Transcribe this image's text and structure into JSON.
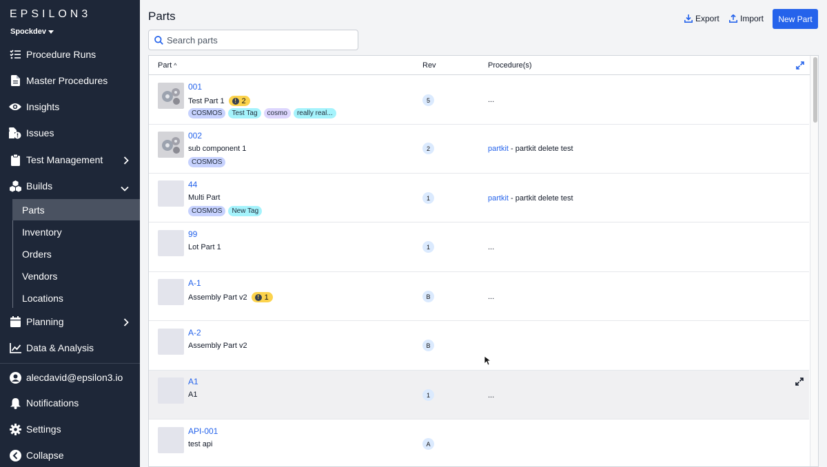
{
  "app": {
    "logo": "EPSILON3",
    "workspace": "Spockdev"
  },
  "sidebar": {
    "items": [
      {
        "label": "Procedure Runs",
        "icon": "list-check-icon"
      },
      {
        "label": "Master Procedures",
        "icon": "document-icon"
      },
      {
        "label": "Insights",
        "icon": "eye-icon"
      },
      {
        "label": "Issues",
        "icon": "issue-file-icon"
      },
      {
        "label": "Test Management",
        "icon": "clipboard-icon"
      },
      {
        "label": "Builds",
        "icon": "cubes-icon"
      },
      {
        "label": "Planning",
        "icon": "calendar-icon"
      },
      {
        "label": "Data & Analysis",
        "icon": "chart-line-icon"
      }
    ],
    "builds_sub": [
      "Parts",
      "Inventory",
      "Orders",
      "Vendors",
      "Locations"
    ],
    "bottom": [
      {
        "label": "alecdavid@epsilon3.io",
        "icon": "user-icon"
      },
      {
        "label": "Notifications",
        "icon": "bell-icon"
      },
      {
        "label": "Settings",
        "icon": "gear-icon"
      },
      {
        "label": "Collapse",
        "icon": "collapse-icon"
      }
    ]
  },
  "header": {
    "title": "Parts",
    "export_label": "Export",
    "import_label": "Import",
    "new_part_label": "New Part"
  },
  "search": {
    "placeholder": "Search parts",
    "value": ""
  },
  "table": {
    "columns": [
      "Part",
      "Rev",
      "Procedure(s)"
    ],
    "sort_indicator": "^",
    "rows": [
      {
        "id": "001",
        "name": "Test Part 1",
        "issues": "2",
        "rev": "5",
        "procedure": "...",
        "tags": [
          "COSMOS",
          "Test Tag",
          "cosmo",
          "really real..."
        ],
        "image": true
      },
      {
        "id": "002",
        "name": "sub component 1",
        "rev": "2",
        "proc_link": "partkit",
        "proc_text": " - partkit delete test",
        "tags": [
          "COSMOS"
        ],
        "image": true
      },
      {
        "id": "44",
        "name": "Multi Part",
        "rev": "1",
        "proc_link": "partkit",
        "proc_text": " - partkit delete test",
        "tags": [
          "COSMOS",
          "New Tag"
        ]
      },
      {
        "id": "99",
        "name": "Lot Part 1",
        "rev": "1",
        "procedure": "..."
      },
      {
        "id": "A-1",
        "name": "Assembly Part v2",
        "issues": "1",
        "rev": "B",
        "procedure": "..."
      },
      {
        "id": "A-2",
        "name": "Assembly Part v2",
        "rev": "B",
        "procedure": ""
      },
      {
        "id": "A1",
        "name": "A1",
        "rev": "1",
        "procedure": "..."
      },
      {
        "id": "API-001",
        "name": "test api",
        "rev": "A",
        "procedure": ""
      }
    ]
  },
  "colors": {
    "sidebar_bg": "#1e2738",
    "accent": "#2563eb",
    "tag_cosmos": "#c7d2fe",
    "tag_cyan": "#a5f3fc",
    "tag_purple": "#ddd6fe",
    "issue_badge": "#fcd34d"
  }
}
